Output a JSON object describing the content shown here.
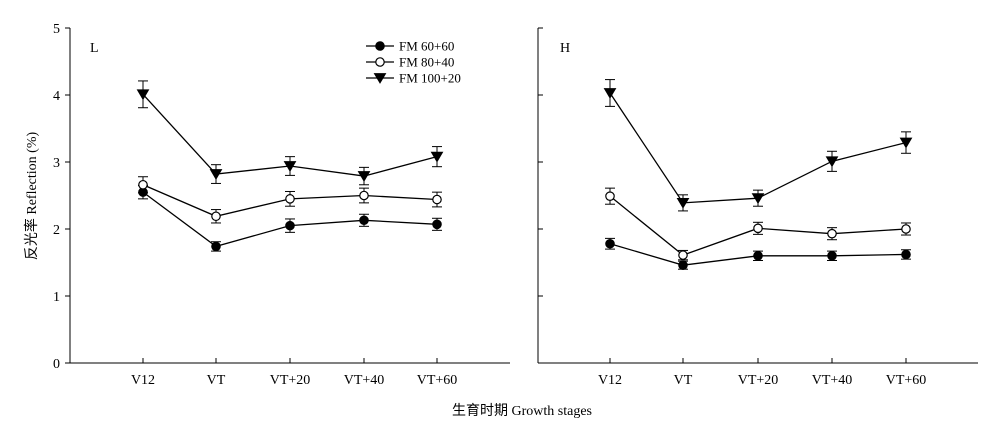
{
  "figure": {
    "ylabel": "反光率 Reflection (%)",
    "xlabel": "生育时期 Growth stages"
  },
  "colors": {
    "ink": "#000000",
    "open_fill": "#ffffff"
  },
  "chart_data": [
    {
      "type": "line",
      "panel_label": "L",
      "categories": [
        "V12",
        "VT",
        "VT+20",
        "VT+40",
        "VT+60"
      ],
      "ylim": [
        0,
        5
      ],
      "yticks": [
        "0",
        "1",
        "2",
        "3",
        "4",
        "5"
      ],
      "grid": false,
      "legend": "top-right",
      "series": [
        {
          "name": "FM 60+60",
          "marker": "filled-circle",
          "values": [
            2.55,
            1.74,
            2.05,
            2.13,
            2.07
          ],
          "errors": [
            0.1,
            0.07,
            0.1,
            0.09,
            0.09
          ]
        },
        {
          "name": "FM 80+40",
          "marker": "open-circle",
          "values": [
            2.66,
            2.19,
            2.45,
            2.5,
            2.44
          ],
          "errors": [
            0.12,
            0.1,
            0.11,
            0.11,
            0.11
          ]
        },
        {
          "name": "FM 100+20",
          "marker": "filled-triangle",
          "values": [
            4.01,
            2.82,
            2.94,
            2.79,
            3.08
          ],
          "errors": [
            0.2,
            0.14,
            0.14,
            0.13,
            0.15
          ]
        }
      ]
    },
    {
      "type": "line",
      "panel_label": "H",
      "categories": [
        "V12",
        "VT",
        "VT+20",
        "VT+40",
        "VT+60"
      ],
      "ylim": [
        0,
        5
      ],
      "yticks": [],
      "grid": false,
      "series": [
        {
          "name": "FM 60+60",
          "marker": "filled-circle",
          "values": [
            1.78,
            1.46,
            1.6,
            1.6,
            1.62
          ],
          "errors": [
            0.08,
            0.06,
            0.07,
            0.07,
            0.07
          ]
        },
        {
          "name": "FM 80+40",
          "marker": "open-circle",
          "values": [
            2.49,
            1.61,
            2.01,
            1.93,
            2.0
          ],
          "errors": [
            0.12,
            0.07,
            0.09,
            0.09,
            0.09
          ]
        },
        {
          "name": "FM 100+20",
          "marker": "filled-triangle",
          "values": [
            4.03,
            2.39,
            2.46,
            3.01,
            3.29
          ],
          "errors": [
            0.2,
            0.12,
            0.12,
            0.15,
            0.16
          ]
        }
      ]
    }
  ]
}
